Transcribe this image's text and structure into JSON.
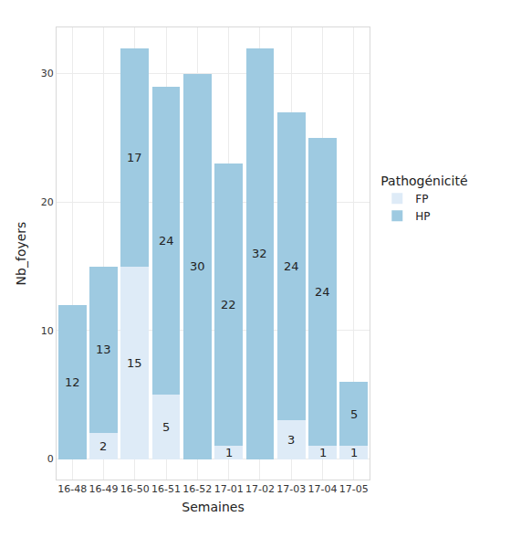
{
  "chart_data": {
    "type": "bar",
    "x_label": "Semaines",
    "y_label": "Nb_foyers",
    "legend_title": "Pathogénicité",
    "categories": [
      "16-48",
      "16-49",
      "16-50",
      "16-51",
      "16-52",
      "17-01",
      "17-02",
      "17-03",
      "17-04",
      "17-05"
    ],
    "series": [
      {
        "name": "FP",
        "color": "#deebf7",
        "values": [
          0,
          2,
          15,
          5,
          0,
          1,
          0,
          3,
          1,
          1
        ]
      },
      {
        "name": "HP",
        "color": "#9ecae1",
        "values": [
          12,
          13,
          17,
          24,
          30,
          22,
          32,
          24,
          24,
          5
        ]
      }
    ],
    "ylim": [
      -1.6,
      33.6
    ],
    "yticks": [
      0,
      10,
      20,
      30
    ],
    "stacked": true,
    "data_labels": true,
    "grid": true,
    "legend": "right"
  }
}
